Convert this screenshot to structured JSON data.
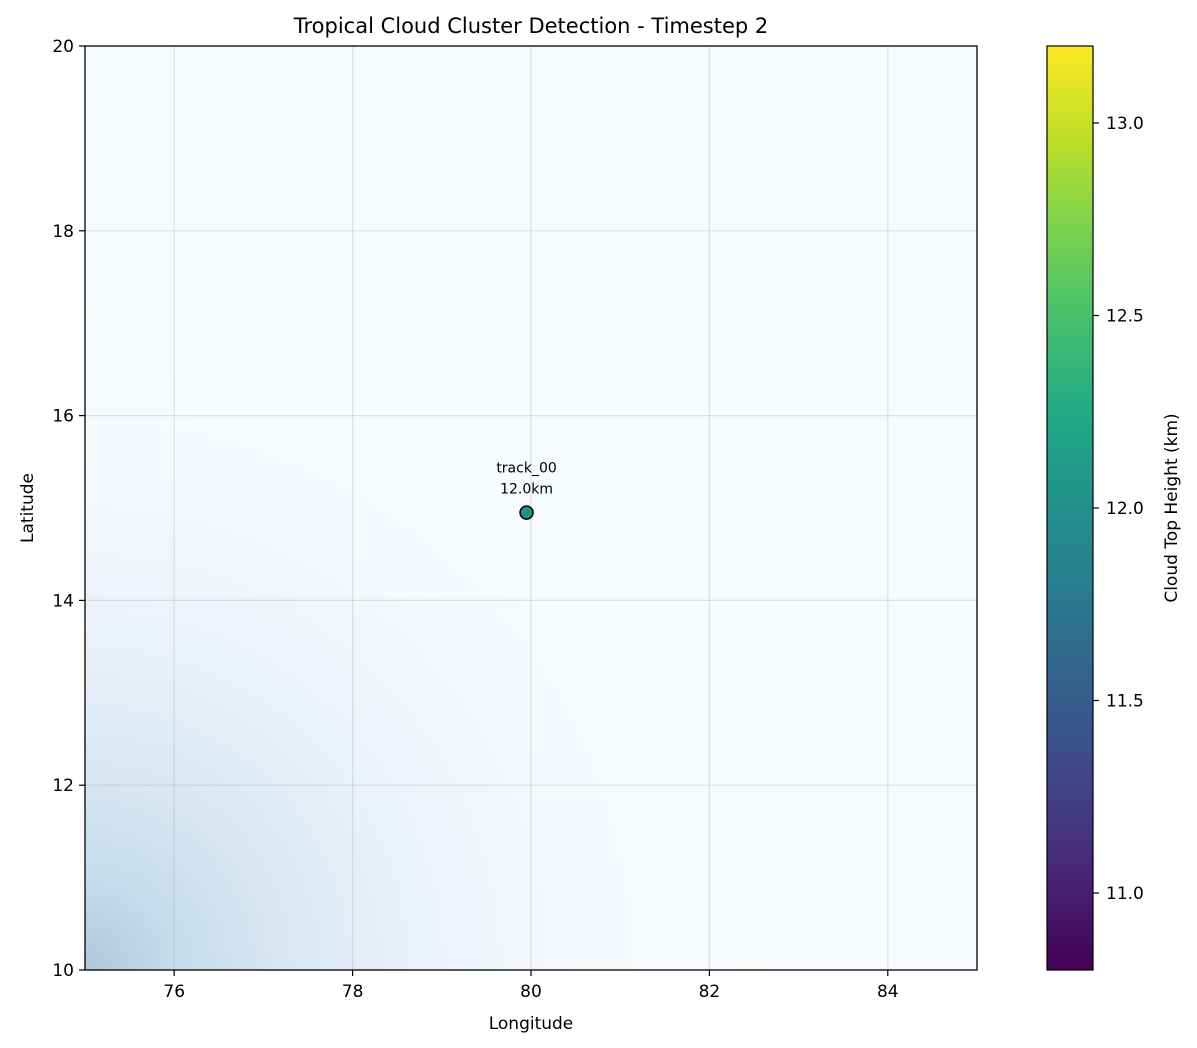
{
  "chart_data": {
    "type": "scatter",
    "title": "Tropical Cloud Cluster Detection - Timestep 2",
    "xlabel": "Longitude",
    "ylabel": "Latitude",
    "xlim": [
      75,
      85
    ],
    "ylim": [
      10,
      20
    ],
    "xticks": [
      76,
      78,
      80,
      82,
      84
    ],
    "xtick_labels": [
      "76",
      "78",
      "80",
      "82",
      "84"
    ],
    "yticks": [
      10,
      12,
      14,
      16,
      18,
      20
    ],
    "ytick_labels": [
      "10",
      "12",
      "14",
      "16",
      "18",
      "20"
    ],
    "grid": true,
    "background_field": "Blues colormap, highest in the lower-left corner, fading to near white toward the upper right",
    "points": [
      {
        "label": "track_00",
        "annotation": "12.0km",
        "lon": 79.95,
        "lat": 14.95,
        "height_km": 12.0
      }
    ],
    "colorbar": {
      "label": "Cloud Top Height (km)",
      "colormap": "viridis",
      "range": [
        10.8,
        13.2
      ],
      "ticks": [
        11.0,
        11.5,
        12.0,
        12.5,
        13.0
      ],
      "tick_labels": [
        "11.0",
        "11.5",
        "12.0",
        "12.5",
        "13.0"
      ]
    }
  }
}
